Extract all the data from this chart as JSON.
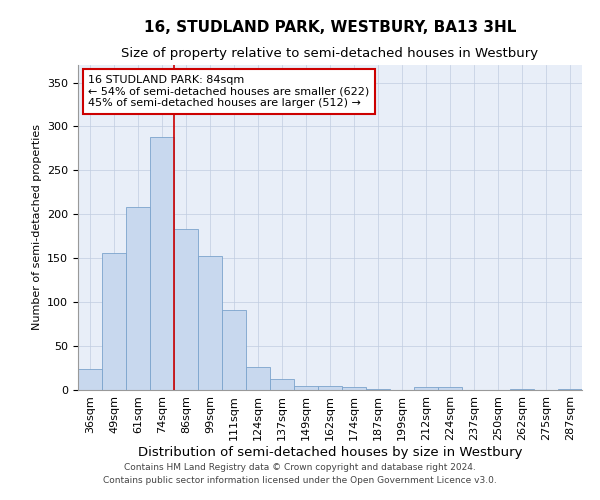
{
  "title": "16, STUDLAND PARK, WESTBURY, BA13 3HL",
  "subtitle": "Size of property relative to semi-detached houses in Westbury",
  "xlabel": "Distribution of semi-detached houses by size in Westbury",
  "ylabel": "Number of semi-detached properties",
  "categories": [
    "36sqm",
    "49sqm",
    "61sqm",
    "74sqm",
    "86sqm",
    "99sqm",
    "111sqm",
    "124sqm",
    "137sqm",
    "149sqm",
    "162sqm",
    "174sqm",
    "187sqm",
    "199sqm",
    "212sqm",
    "224sqm",
    "237sqm",
    "250sqm",
    "262sqm",
    "275sqm",
    "287sqm"
  ],
  "values": [
    24,
    156,
    208,
    288,
    183,
    152,
    91,
    26,
    13,
    5,
    5,
    3,
    1,
    0,
    3,
    3,
    0,
    0,
    1,
    0,
    1
  ],
  "bar_color": "#c8d8ee",
  "bar_edge_color": "#7ba3cc",
  "vline_index": 4,
  "vline_color": "#cc0000",
  "annotation_line1": "16 STUDLAND PARK: 84sqm",
  "annotation_line2": "← 54% of semi-detached houses are smaller (622)",
  "annotation_line3": "45% of semi-detached houses are larger (512) →",
  "annotation_box_color": "#ffffff",
  "annotation_box_edge": "#cc0000",
  "ylim": [
    0,
    370
  ],
  "yticks": [
    0,
    50,
    100,
    150,
    200,
    250,
    300,
    350
  ],
  "footnote1": "Contains HM Land Registry data © Crown copyright and database right 2024.",
  "footnote2": "Contains public sector information licensed under the Open Government Licence v3.0.",
  "plot_bg_color": "#e8eef8",
  "grid_color": "#c0cce0",
  "title_fontsize": 11,
  "subtitle_fontsize": 9.5,
  "xlabel_fontsize": 9.5,
  "ylabel_fontsize": 8,
  "tick_fontsize": 8,
  "annot_fontsize": 8,
  "footnote_fontsize": 6.5
}
